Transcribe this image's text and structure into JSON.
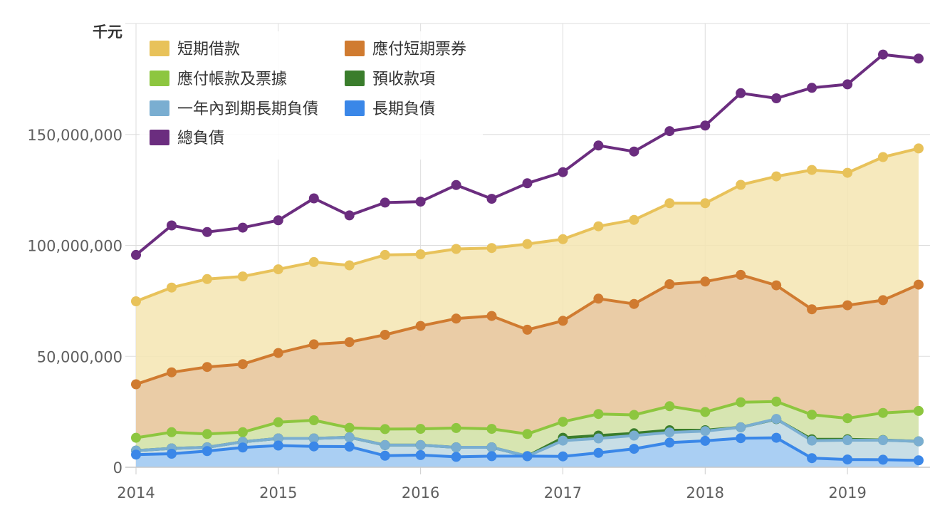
{
  "chart_data": {
    "type": "area",
    "unit": "千元",
    "ylim": [
      0,
      200000000
    ],
    "y_ticks": [
      {
        "value": 0,
        "label": "0"
      },
      {
        "value": 50000000,
        "label": "50,000,000"
      },
      {
        "value": 100000000,
        "label": "100,000,000"
      },
      {
        "value": 150000000,
        "label": "150,000,000"
      }
    ],
    "x_ticks": [
      {
        "value": 2014,
        "label": "2014"
      },
      {
        "value": 2015,
        "label": "2015"
      },
      {
        "value": 2016,
        "label": "2016"
      },
      {
        "value": 2017,
        "label": "2017"
      },
      {
        "value": 2018,
        "label": "2018"
      },
      {
        "value": 2019,
        "label": "2019"
      }
    ],
    "xlim": [
      2014,
      2019.5
    ],
    "x": [
      2014,
      2014.25,
      2014.5,
      2014.75,
      2015,
      2015.25,
      2015.5,
      2015.75,
      2016,
      2016.25,
      2016.5,
      2016.75,
      2017,
      2017.25,
      2017.5,
      2017.75,
      2018,
      2018.25,
      2018.5,
      2018.75,
      2019,
      2019.25,
      2019.5
    ],
    "grid": true,
    "legend_position": "top-left",
    "series": [
      {
        "name": "短期借款",
        "color": "#e8c25a",
        "fill": "#f5e5b1",
        "values": [
          74800000,
          81000000,
          84800000,
          86000000,
          89200000,
          92500000,
          91000000,
          95700000,
          96000000,
          98400000,
          98800000,
          100600000,
          102800000,
          108600000,
          111500000,
          119000000,
          119000000,
          127300000,
          131100000,
          134000000,
          132700000,
          139800000,
          143700000
        ]
      },
      {
        "name": "應付短期票券",
        "color": "#d07b30",
        "fill": "#e8c7a2",
        "values": [
          37400000,
          42800000,
          45200000,
          46500000,
          51500000,
          55400000,
          56400000,
          59700000,
          63700000,
          67000000,
          68200000,
          62000000,
          66000000,
          76000000,
          73600000,
          82500000,
          83700000,
          86700000,
          82000000,
          71200000,
          73000000,
          75300000,
          82300000
        ]
      },
      {
        "name": "應付帳款及票據",
        "color": "#8dc63f",
        "fill": "#d4e9b3",
        "values": [
          13300000,
          15800000,
          15000000,
          15800000,
          20300000,
          21200000,
          17800000,
          17200000,
          17300000,
          17700000,
          17300000,
          15000000,
          20500000,
          24000000,
          23600000,
          27500000,
          24900000,
          29300000,
          29600000,
          23700000,
          22100000,
          24500000,
          25400000
        ]
      },
      {
        "name": "預收款項",
        "color": "#3a7d2c",
        "fill": "#c6deb9",
        "values": [
          7500000,
          8500000,
          9000000,
          11500000,
          13000000,
          13000000,
          13500000,
          10000000,
          10000000,
          9000000,
          9000000,
          5000000,
          13300000,
          14300000,
          15300000,
          16700000,
          16700000,
          18000000,
          21700000,
          12600000,
          12600000,
          12300000,
          11700000
        ]
      },
      {
        "name": "一年內到期長期負債",
        "color": "#7aaed1",
        "fill": "#c8deee",
        "values": [
          7500000,
          8500000,
          9000000,
          11500000,
          13000000,
          13000000,
          13500000,
          10000000,
          10000000,
          9000000,
          9000000,
          5000000,
          12000000,
          13000000,
          14300000,
          15700000,
          16300000,
          18000000,
          21800000,
          12000000,
          12200000,
          12200000,
          11700000
        ]
      },
      {
        "name": "長期負債",
        "color": "#3a87e8",
        "fill": "#a4cdf5",
        "values": [
          5700000,
          6100000,
          7300000,
          8900000,
          9800000,
          9400000,
          9300000,
          5200000,
          5500000,
          4700000,
          5000000,
          5000000,
          4900000,
          6500000,
          8300000,
          11100000,
          11900000,
          13100000,
          13300000,
          4100000,
          3500000,
          3400000,
          3100000
        ]
      },
      {
        "name": "總負債",
        "color": "#6b2d7f",
        "fill": "none",
        "values": [
          95700000,
          109000000,
          106000000,
          108000000,
          111300000,
          121200000,
          113500000,
          119300000,
          119700000,
          127200000,
          121000000,
          128000000,
          133000000,
          145000000,
          142300000,
          151500000,
          154000000,
          168600000,
          166300000,
          171000000,
          172600000,
          186000000,
          184200000
        ]
      }
    ]
  }
}
